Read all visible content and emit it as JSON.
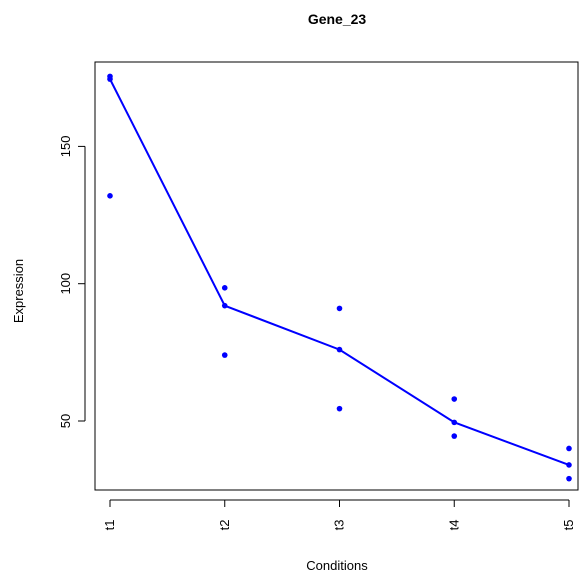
{
  "chart_data": {
    "type": "scatter",
    "title": "Gene_23",
    "xlabel": "Conditions",
    "ylabel": "Expression",
    "categories": [
      "t1",
      "t2",
      "t3",
      "t4",
      "t5"
    ],
    "y_ticks": [
      50,
      100,
      150
    ],
    "ylim": [
      25,
      180
    ],
    "grid": false,
    "legend": "none",
    "color": "#0000ff",
    "series": [
      {
        "kind": "points",
        "points": [
          {
            "x": "t1",
            "y": 175.5
          },
          {
            "x": "t1",
            "y": 174.5
          },
          {
            "x": "t1",
            "y": 132
          },
          {
            "x": "t2",
            "y": 98.5
          },
          {
            "x": "t2",
            "y": 92
          },
          {
            "x": "t2",
            "y": 74
          },
          {
            "x": "t3",
            "y": 91
          },
          {
            "x": "t3",
            "y": 76
          },
          {
            "x": "t3",
            "y": 54.5
          },
          {
            "x": "t4",
            "y": 58
          },
          {
            "x": "t4",
            "y": 49.5
          },
          {
            "x": "t4",
            "y": 44.5
          },
          {
            "x": "t5",
            "y": 40
          },
          {
            "x": "t5",
            "y": 34
          },
          {
            "x": "t5",
            "y": 29
          }
        ]
      },
      {
        "kind": "line",
        "values": [
          174.5,
          92,
          76,
          49.5,
          34
        ]
      }
    ]
  }
}
